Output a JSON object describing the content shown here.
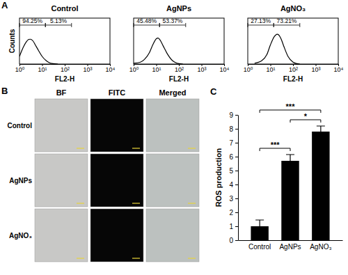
{
  "chart_data": [
    {
      "type": "line",
      "panel": "A",
      "title": "Control",
      "x_label": "FL2-H",
      "y_label": "Counts",
      "log": "x",
      "tick_labels": "x",
      "color": "#000000",
      "xlim": [
        1,
        10000
      ],
      "xticks": [
        {
          "value": 1,
          "label": "10⁰"
        },
        {
          "value": 10,
          "label": "10¹"
        },
        {
          "value": 100,
          "label": "10²"
        },
        {
          "value": 1000,
          "label": "10³"
        },
        {
          "value": 10000,
          "label": "10⁴"
        }
      ],
      "ylim": [
        0,
        120
      ],
      "x": [
        1,
        1.5,
        2,
        2.5,
        3,
        4,
        5,
        7,
        10,
        15,
        20,
        30,
        50
      ],
      "values": [
        20,
        45,
        58,
        64,
        65,
        60,
        50,
        35,
        20,
        9,
        4,
        1,
        0
      ],
      "gates": [
        {
          "label": "94.25%",
          "range": [
            1,
            14
          ]
        },
        {
          "label": "5.13%",
          "range": [
            14,
            200
          ]
        }
      ]
    },
    {
      "type": "line",
      "title": "AgNPs",
      "x_label": "FL2-H",
      "log": "x",
      "tick_labels": "x",
      "color": "#000000",
      "xlim": [
        1,
        10000
      ],
      "xticks": [
        {
          "value": 1,
          "label": "10⁰"
        },
        {
          "value": 10,
          "label": "10¹"
        },
        {
          "value": 100,
          "label": "10²"
        },
        {
          "value": 1000,
          "label": "10³"
        },
        {
          "value": 10000,
          "label": "10⁴"
        }
      ],
      "ylim": [
        0,
        120
      ],
      "x": [
        1,
        2,
        3,
        5,
        7,
        10,
        12,
        15,
        20,
        30,
        50,
        70,
        100,
        150
      ],
      "values": [
        2,
        5,
        12,
        30,
        50,
        66,
        68,
        62,
        48,
        28,
        10,
        4,
        1,
        0
      ],
      "gates": [
        {
          "label": "45.48%",
          "range": [
            1,
            14
          ]
        },
        {
          "label": "53.37%",
          "range": [
            14,
            200
          ]
        }
      ]
    },
    {
      "type": "line",
      "title": "AgNO₃",
      "x_label": "FL2-H",
      "log": "x",
      "tick_labels": "x",
      "color": "#000000",
      "xlim": [
        1,
        10000
      ],
      "xticks": [
        {
          "value": 1,
          "label": "10⁰"
        },
        {
          "value": 10,
          "label": "10¹"
        },
        {
          "value": 100,
          "label": "10²"
        },
        {
          "value": 1000,
          "label": "10³"
        },
        {
          "value": 10000,
          "label": "10⁴"
        }
      ],
      "ylim": [
        0,
        120
      ],
      "x": [
        2,
        4,
        7,
        10,
        15,
        20,
        25,
        30,
        40,
        60,
        100,
        150,
        200
      ],
      "values": [
        2,
        8,
        25,
        50,
        72,
        78,
        74,
        65,
        45,
        20,
        5,
        1,
        0
      ],
      "gates": [
        {
          "label": "27.13%",
          "range": [
            1,
            14
          ]
        },
        {
          "label": "73.21%",
          "range": [
            14,
            200
          ]
        }
      ]
    },
    {
      "type": "bar",
      "panel": "C",
      "y_label": "ROS production",
      "color": "#000000",
      "categories": [
        "Control",
        "AgNPs",
        "AgNO₃"
      ],
      "values": [
        1.0,
        5.7,
        7.8
      ],
      "errors": [
        0.45,
        0.45,
        0.4
      ],
      "ylim": [
        0,
        9
      ],
      "yticks": [
        0,
        1,
        2,
        3,
        4,
        5,
        6,
        7,
        8,
        9
      ],
      "comparisons": [
        {
          "pair": [
            0,
            1
          ],
          "label": "***"
        },
        {
          "pair": [
            0,
            2
          ],
          "label": "***"
        },
        {
          "pair": [
            1,
            2
          ],
          "label": "*"
        }
      ]
    }
  ],
  "image_panel": {
    "panel": "B",
    "columns": [
      "BF",
      "FITC",
      "Merged"
    ],
    "rows": [
      "Control",
      "AgNPs",
      "AgNO₃"
    ]
  }
}
